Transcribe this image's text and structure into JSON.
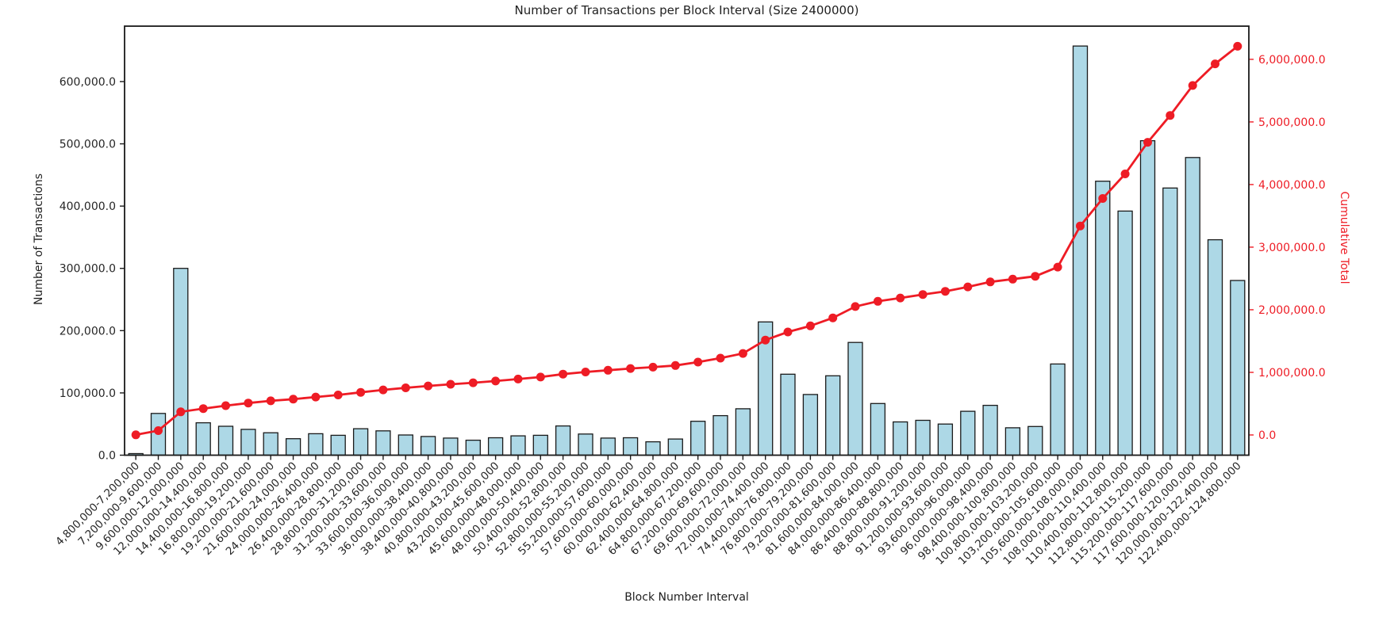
{
  "chart_data": {
    "type": "bar",
    "title": "Number of Transactions per Block Interval (Size 2400000)",
    "xlabel": "Block Number Interval",
    "ylabel_left": "Number of Transactions",
    "ylabel_right": "Cumulative Total",
    "grid": false,
    "legend": "none",
    "colors": {
      "bar_fill": "#ADD8E6",
      "bar_edge": "#1a1a1a",
      "line": "#ee1c25",
      "axis": "#1a1a1a",
      "text": "#262626"
    },
    "categories": [
      "4,800,000-7,200,000",
      "7,200,000-9,600,000",
      "9,600,000-12,000,000",
      "12,000,000-14,400,000",
      "14,400,000-16,800,000",
      "16,800,000-19,200,000",
      "19,200,000-21,600,000",
      "21,600,000-24,000,000",
      "24,000,000-26,400,000",
      "26,400,000-28,800,000",
      "28,800,000-31,200,000",
      "31,200,000-33,600,000",
      "33,600,000-36,000,000",
      "36,000,000-38,400,000",
      "38,400,000-40,800,000",
      "40,800,000-43,200,000",
      "43,200,000-45,600,000",
      "45,600,000-48,000,000",
      "48,000,000-50,400,000",
      "50,400,000-52,800,000",
      "52,800,000-55,200,000",
      "55,200,000-57,600,000",
      "57,600,000-60,000,000",
      "60,000,000-62,400,000",
      "62,400,000-64,800,000",
      "64,800,000-67,200,000",
      "67,200,000-69,600,000",
      "69,600,000-72,000,000",
      "72,000,000-74,400,000",
      "74,400,000-76,800,000",
      "76,800,000-79,200,000",
      "79,200,000-81,600,000",
      "81,600,000-84,000,000",
      "84,000,000-86,400,000",
      "86,400,000-88,800,000",
      "88,800,000-91,200,000",
      "91,200,000-93,600,000",
      "93,600,000-96,000,000",
      "96,000,000-98,400,000",
      "98,400,000-100,800,000",
      "100,800,000-103,200,000",
      "103,200,000-105,600,000",
      "105,600,000-108,000,000",
      "108,000,000-110,400,000",
      "110,400,000-112,800,000",
      "112,800,000-115,200,000",
      "115,200,000-117,600,000",
      "117,600,000-120,000,000",
      "120,000,000-122,400,000",
      "122,400,000-124,800,000"
    ],
    "series": [
      {
        "name": "Number of Transactions",
        "type": "bar",
        "axis": "left",
        "values": [
          2500,
          67000,
          300000,
          52000,
          46500,
          41500,
          36000,
          26500,
          34500,
          32000,
          42500,
          39000,
          32500,
          30000,
          27500,
          24000,
          28000,
          31000,
          32000,
          47000,
          34000,
          27500,
          28000,
          21500,
          26000,
          54500,
          63500,
          74500,
          214000,
          130000,
          97500,
          127500,
          181000,
          83000,
          53500,
          56000,
          50000,
          70500,
          80000,
          44000,
          46000,
          146500,
          657000,
          440000,
          392000,
          505000,
          429000,
          478000,
          346000,
          280500
        ]
      },
      {
        "name": "Cumulative Total",
        "type": "line",
        "axis": "right",
        "marker": "circle",
        "values": [
          2500,
          69500,
          369500,
          421500,
          468000,
          509500,
          545500,
          572000,
          606500,
          638500,
          681000,
          720000,
          752500,
          782500,
          810000,
          834000,
          862000,
          893000,
          925000,
          972000,
          1006000,
          1033500,
          1061500,
          1083000,
          1109000,
          1163500,
          1227000,
          1301500,
          1515500,
          1645500,
          1743000,
          1870500,
          2051500,
          2134500,
          2188000,
          2244000,
          2294000,
          2364500,
          2444500,
          2488500,
          2534500,
          2681000,
          3338000,
          3778000,
          4170000,
          4675000,
          5104000,
          5582000,
          5928000,
          6208500
        ]
      }
    ],
    "left_axis": {
      "ylim": [
        0,
        689000
      ],
      "tick_values": [
        0,
        100000,
        200000,
        300000,
        400000,
        500000,
        600000
      ],
      "tick_labels": [
        "0.0",
        "100,000.0",
        "200,000.0",
        "300,000.0",
        "400,000.0",
        "500,000.0",
        "600,000.0"
      ]
    },
    "right_axis": {
      "ylim": [
        -323000,
        6530000
      ],
      "tick_values": [
        0,
        1000000,
        2000000,
        3000000,
        4000000,
        5000000,
        6000000
      ],
      "tick_labels": [
        "0.0",
        "1,000,000.0",
        "2,000,000.0",
        "3,000,000.0",
        "4,000,000.0",
        "5,000,000.0",
        "6,000,000.0"
      ]
    }
  }
}
